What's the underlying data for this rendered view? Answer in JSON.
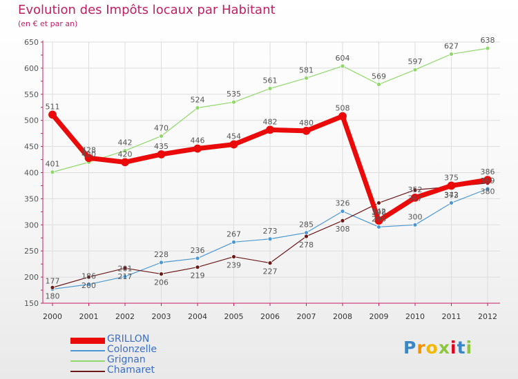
{
  "header": {
    "title": "Evolution des Impôts locaux par Habitant",
    "subtitle": "(en € et par an)"
  },
  "logo": {
    "letters": [
      "P",
      "r",
      "o",
      "x",
      "i",
      "t",
      "i"
    ],
    "colors": [
      "#3b86c4",
      "#f19300",
      "#f3b800",
      "#8cc63f",
      "#e2001a",
      "#3b86c4",
      "#8cc63f"
    ]
  },
  "colors": {
    "axis": "#c21d63",
    "grid": "#dddddd",
    "label": "#555555"
  },
  "chart_data": {
    "type": "line",
    "title": "Evolution des Impôts locaux par Habitant",
    "subtitle": "(en € et par an)",
    "xlabel": "",
    "ylabel": "",
    "categories": [
      "2000",
      "2001",
      "2002",
      "2003",
      "2004",
      "2005",
      "2006",
      "2007",
      "2008",
      "2009",
      "2010",
      "2011",
      "2012"
    ],
    "ylim": [
      150,
      650
    ],
    "yticks": [
      150,
      200,
      250,
      300,
      350,
      400,
      450,
      500,
      550,
      600,
      650
    ],
    "grid": true,
    "legend_position": "bottom-left",
    "series": [
      {
        "name": "Colonzelle",
        "color": "#4b97d3",
        "width": 1.2,
        "label_pos": "above",
        "values": [
          177,
          186,
          201,
          228,
          236,
          267,
          273,
          285,
          326,
          296,
          300,
          342,
          369
        ]
      },
      {
        "name": "Grignan",
        "color": "#8fd86a",
        "width": 1.2,
        "label_pos": "above",
        "values": [
          401,
          420,
          442,
          470,
          524,
          535,
          561,
          581,
          604,
          569,
          597,
          627,
          638
        ]
      },
      {
        "name": "Chamaret",
        "color": "#6b1818",
        "width": 1.2,
        "label_pos": "below",
        "values": [
          180,
          200,
          217,
          206,
          219,
          239,
          227,
          278,
          308,
          342,
          367,
          373,
          380
        ]
      },
      {
        "name": "GRILLON",
        "color": "#ea0a0a",
        "width": 7,
        "label_pos": "above",
        "values": [
          511,
          428,
          420,
          435,
          446,
          454,
          482,
          480,
          508,
          308,
          352,
          375,
          386
        ]
      }
    ]
  }
}
